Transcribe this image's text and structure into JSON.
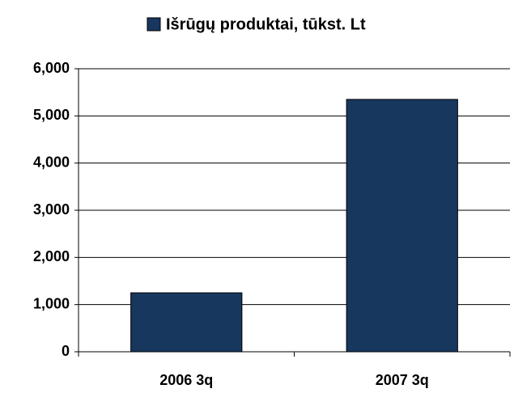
{
  "chart_data": {
    "type": "bar",
    "categories": [
      "2006 3q",
      "2007 3q"
    ],
    "series": [
      {
        "name": "Išrūgų produktai, tūkst. Lt",
        "color": "#17375e",
        "values": [
          1250,
          5350
        ]
      }
    ],
    "ylim": [
      0,
      6000
    ],
    "yticks": [
      0,
      {
        "value": 1000,
        "label": "1,000"
      },
      {
        "value": 2000,
        "label": "2,000"
      },
      {
        "value": 3000,
        "label": "3,000"
      },
      {
        "value": 4000,
        "label": "4,000"
      },
      {
        "value": 5000,
        "label": "5,000"
      },
      {
        "value": 6000,
        "label": "6,000"
      }
    ],
    "grid": true,
    "legend": "top"
  }
}
